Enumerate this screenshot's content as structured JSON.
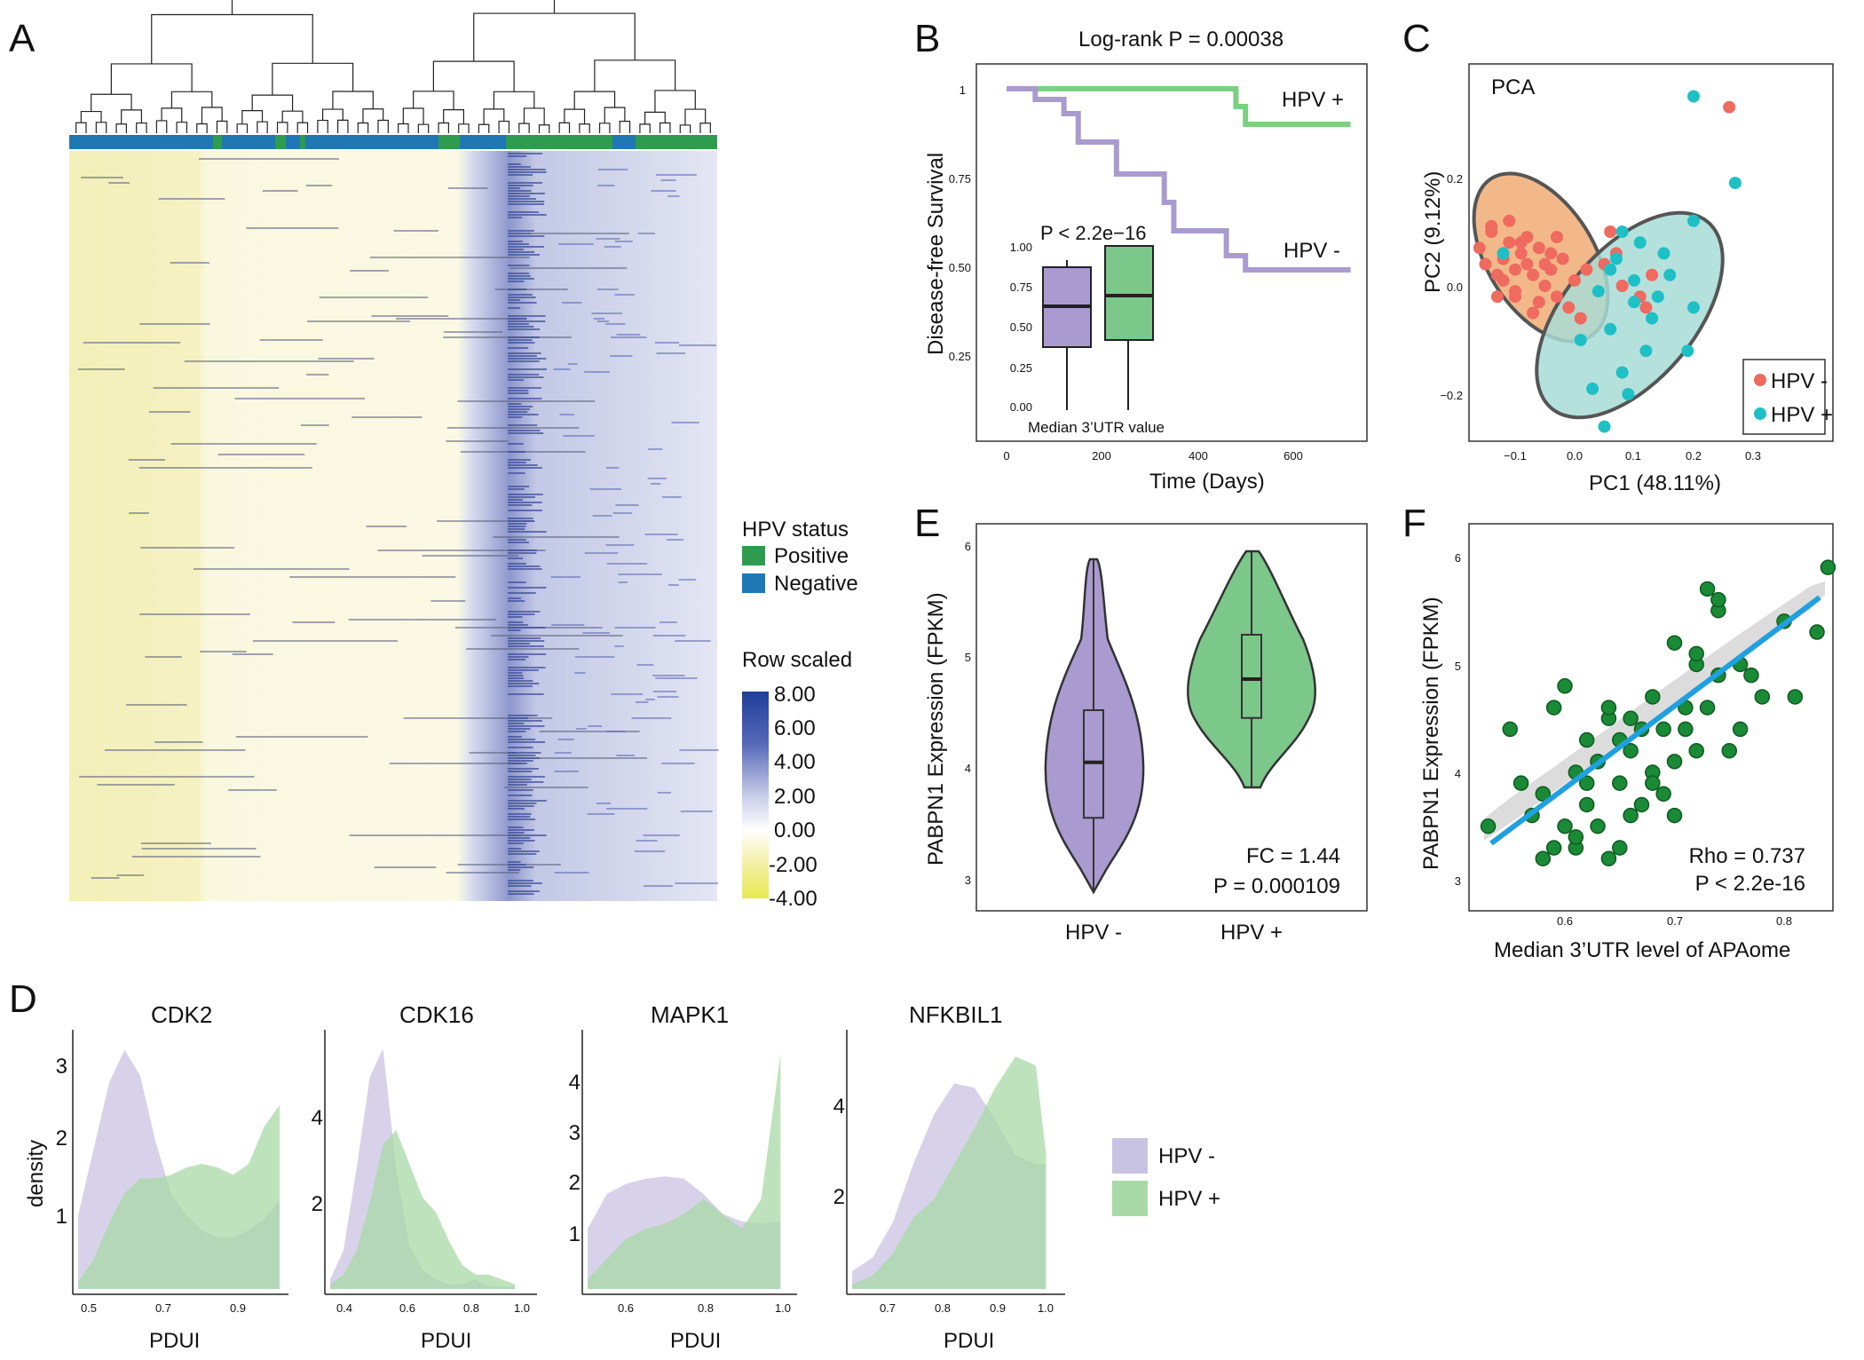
{
  "panel_labels": {
    "A": "A",
    "B": "B",
    "C": "C",
    "D": "D",
    "E": "E",
    "F": "F"
  },
  "colors": {
    "hpv_pos_green": "#2e9c4e",
    "hpv_neg_blue": "#1f77b4",
    "heat_high": "#2b4aa0",
    "heat_mid": "#ffffff",
    "heat_low": "#e8e85a",
    "purple": "#a99bcf",
    "green_fill": "#7cc78a",
    "salmon": "#ef6a5f",
    "teal": "#1ec0c6",
    "dark_green": "#1a8a36",
    "fit_blue": "#1fa0e0"
  },
  "panelA": {
    "legend_title": "HPV status",
    "legend_items": [
      {
        "label": "Positive",
        "color": "#2e9c4e"
      },
      {
        "label": "Negative",
        "color": "#1f77b4"
      }
    ],
    "scale_title": "Row scaled",
    "scale_ticks": [
      "8.00",
      "6.00",
      "4.00",
      "2.00",
      "0.00",
      "-2.00",
      "-4.00"
    ]
  },
  "panelB": {
    "title": "Log-rank P = 0.00038",
    "xlabel": "Time (Days)",
    "ylabel": "Disease-free Survival",
    "x_ticks": [
      "0",
      "200",
      "400",
      "600"
    ],
    "y_ticks": [
      "1",
      "0.75",
      "0.50",
      "0.25"
    ],
    "label_pos": "HPV +",
    "label_neg": "HPV -",
    "inset_p": "P < 2.2e−16",
    "inset_ticks": [
      "1.00",
      "0.75",
      "0.50",
      "0.25",
      "0.00"
    ],
    "inset_xlabel": "Median 3’UTR value"
  },
  "panelC": {
    "title": "PCA",
    "xlabel": "PC1 (48.11%)",
    "ylabel": "PC2 (9.12%)",
    "x_ticks": [
      "−0.1",
      "0.0",
      "0.1",
      "0.2",
      "0.3"
    ],
    "y_ticks": [
      "0.2",
      "0.0",
      "−0.2"
    ],
    "legend": [
      {
        "label": "HPV -",
        "color": "#ef6a5f"
      },
      {
        "label": "HPV +",
        "color": "#1ec0c6"
      }
    ]
  },
  "panelE": {
    "ylabel": "PABPN1 Expression (FPKM)",
    "y_ticks": [
      "6",
      "5",
      "4",
      "3"
    ],
    "categories": [
      "HPV -",
      "HPV +"
    ],
    "fc": "FC = 1.44",
    "p": "P = 0.000109"
  },
  "panelF": {
    "xlabel": "Median 3’UTR level of APAome",
    "ylabel": "PABPN1 Expression (FPKM)",
    "x_ticks": [
      "0.6",
      "0.7",
      "0.8"
    ],
    "y_ticks": [
      "6",
      "5",
      "4",
      "3"
    ],
    "rho": "Rho = 0.737",
    "p": "P < 2.2e-16"
  },
  "panelD": {
    "ylabel": "density",
    "plots": [
      {
        "title": "CDK2",
        "xlabel": "PDUI",
        "x_ticks": [
          "0.5",
          "0.7",
          "0.9"
        ],
        "y_ticks": [
          "3",
          "2",
          "1"
        ]
      },
      {
        "title": "CDK16",
        "xlabel": "PDUI",
        "x_ticks": [
          "0.4",
          "0.6",
          "0.8",
          "1.0"
        ],
        "y_ticks": [
          "4",
          "2"
        ]
      },
      {
        "title": "MAPK1",
        "xlabel": "PDUI",
        "x_ticks": [
          "0.6",
          "0.8",
          "1.0"
        ],
        "y_ticks": [
          "4",
          "3",
          "2",
          "1"
        ]
      },
      {
        "title": "NFKBIL1",
        "xlabel": "PDUI",
        "x_ticks": [
          "0.7",
          "0.8",
          "0.9",
          "1.0"
        ],
        "y_ticks": [
          "4",
          "2"
        ]
      }
    ],
    "legend": [
      {
        "label": "HPV -",
        "color": "#c9c3e3"
      },
      {
        "label": "HPV +",
        "color": "#a8d9a6"
      }
    ]
  },
  "chart_data": [
    {
      "type": "line",
      "panel": "B",
      "title": "Log-rank P = 0.00038",
      "xlabel": "Time (Days)",
      "ylabel": "Disease-free Survival",
      "xlim": [
        0,
        720
      ],
      "ylim": [
        0.2,
        1.0
      ],
      "series": [
        {
          "name": "HPV +",
          "x": [
            0,
            480,
            480,
            500,
            500,
            720
          ],
          "y": [
            1.0,
            1.0,
            0.95,
            0.95,
            0.9,
            0.9
          ]
        },
        {
          "name": "HPV -",
          "x": [
            0,
            60,
            60,
            120,
            120,
            150,
            150,
            230,
            230,
            330,
            330,
            350,
            350,
            460,
            460,
            500,
            500,
            720
          ],
          "y": [
            1.0,
            1.0,
            0.97,
            0.97,
            0.93,
            0.93,
            0.85,
            0.85,
            0.76,
            0.76,
            0.68,
            0.68,
            0.6,
            0.6,
            0.53,
            0.53,
            0.49,
            0.49
          ]
        }
      ]
    },
    {
      "type": "scatter",
      "panel": "C",
      "title": "PCA",
      "xlabel": "PC1 (48.11%)",
      "ylabel": "PC2 (9.12%)",
      "xlim": [
        -0.16,
        0.36
      ],
      "ylim": [
        -0.28,
        0.35
      ],
      "series": [
        {
          "name": "HPV -",
          "x": [
            -0.16,
            -0.15,
            -0.14,
            -0.13,
            -0.12,
            -0.11,
            -0.1,
            -0.1,
            -0.09,
            -0.08,
            -0.07,
            -0.06,
            -0.05,
            -0.04,
            -0.03,
            -0.02,
            -0.01,
            0.0,
            0.01,
            0.02,
            -0.13,
            -0.11,
            -0.08,
            -0.06,
            -0.04,
            -0.12,
            -0.09,
            -0.05,
            -0.07,
            -0.03,
            0.05,
            0.07,
            0.06,
            0.08,
            0.11,
            0.12,
            0.13,
            0.26,
            -0.14,
            -0.1
          ],
          "y": [
            0.07,
            0.04,
            0.1,
            0.02,
            0.05,
            0.08,
            0.03,
            -0.01,
            0.06,
            0.04,
            0.02,
            0.07,
            0.0,
            0.03,
            -0.02,
            0.05,
            -0.04,
            0.01,
            -0.06,
            0.03,
            -0.02,
            0.12,
            0.09,
            -0.03,
            0.06,
            0.01,
            0.08,
            0.04,
            -0.05,
            0.09,
            0.04,
            0.06,
            0.1,
            0.0,
            -0.02,
            -0.04,
            0.02,
            0.33,
            0.11,
            -0.02
          ]
        },
        {
          "name": "HPV +",
          "x": [
            0.2,
            0.27,
            0.2,
            0.08,
            0.07,
            0.11,
            0.15,
            0.2,
            0.04,
            0.06,
            0.1,
            0.12,
            0.16,
            0.08,
            0.13,
            0.03,
            0.01,
            0.1,
            0.05,
            0.19,
            0.09,
            0.14,
            -0.12,
            0.06
          ],
          "y": [
            0.35,
            0.19,
            0.12,
            0.1,
            0.05,
            0.08,
            0.06,
            -0.04,
            -0.01,
            -0.08,
            -0.03,
            -0.12,
            0.02,
            -0.16,
            -0.06,
            -0.19,
            -0.1,
            0.01,
            -0.26,
            -0.12,
            -0.2,
            -0.02,
            0.06,
            0.03
          ]
        }
      ]
    },
    {
      "type": "bar",
      "panel": "E",
      "ylabel": "PABPN1 Expression (FPKM)",
      "categories": [
        "HPV -",
        "HPV +"
      ],
      "ylim": [
        2.8,
        6.1
      ],
      "series": [
        {
          "name": "median",
          "values": [
            4.05,
            4.8
          ]
        },
        {
          "name": "q1",
          "values": [
            3.55,
            4.45
          ]
        },
        {
          "name": "q3",
          "values": [
            4.52,
            5.2
          ]
        },
        {
          "name": "min",
          "values": [
            2.9,
            3.83
          ]
        },
        {
          "name": "max",
          "values": [
            5.87,
            5.95
          ]
        }
      ]
    },
    {
      "type": "scatter",
      "panel": "F",
      "xlabel": "Median 3’UTR level of APAome",
      "ylabel": "PABPN1 Expression (FPKM)",
      "xlim": [
        0.52,
        0.85
      ],
      "ylim": [
        2.8,
        6.1
      ],
      "series": [
        {
          "name": "samples",
          "x": [
            0.53,
            0.55,
            0.57,
            0.58,
            0.59,
            0.6,
            0.61,
            0.61,
            0.62,
            0.62,
            0.63,
            0.63,
            0.64,
            0.64,
            0.65,
            0.65,
            0.66,
            0.66,
            0.67,
            0.67,
            0.68,
            0.68,
            0.69,
            0.69,
            0.7,
            0.7,
            0.71,
            0.71,
            0.72,
            0.72,
            0.73,
            0.73,
            0.74,
            0.74,
            0.75,
            0.76,
            0.77,
            0.78,
            0.8,
            0.81,
            0.83,
            0.84,
            0.56,
            0.59,
            0.63,
            0.66,
            0.7,
            0.74,
            0.6,
            0.62,
            0.58,
            0.64,
            0.68,
            0.72,
            0.76,
            0.61,
            0.65
          ],
          "y": [
            3.5,
            4.4,
            3.6,
            3.8,
            3.3,
            3.5,
            4.0,
            3.3,
            4.3,
            3.7,
            4.1,
            3.5,
            4.5,
            3.2,
            3.9,
            4.3,
            4.2,
            3.6,
            4.4,
            3.7,
            4.7,
            4.0,
            4.4,
            3.8,
            5.2,
            4.1,
            4.6,
            4.4,
            5.0,
            4.2,
            5.7,
            4.6,
            5.5,
            4.9,
            4.2,
            5.0,
            4.9,
            4.7,
            5.4,
            4.7,
            5.3,
            5.9,
            3.9,
            4.6,
            4.1,
            4.5,
            3.6,
            5.6,
            4.8,
            3.9,
            3.2,
            4.6,
            3.9,
            5.1,
            4.4,
            3.4,
            3.3
          ]
        }
      ]
    },
    {
      "type": "area",
      "panel": "D",
      "title": "CDK2",
      "xlabel": "PDUI",
      "ylabel": "density",
      "xlim": [
        0.48,
        1.0
      ],
      "ylim": [
        0,
        3.4
      ],
      "x": [
        0.48,
        0.52,
        0.56,
        0.6,
        0.64,
        0.68,
        0.72,
        0.76,
        0.8,
        0.84,
        0.88,
        0.92,
        0.96,
        1.0
      ],
      "series": [
        {
          "name": "HPV -",
          "values": [
            1.0,
            1.9,
            2.8,
            3.25,
            2.9,
            2.0,
            1.3,
            1.0,
            0.8,
            0.7,
            0.7,
            0.8,
            0.95,
            1.2
          ]
        },
        {
          "name": "HPV +",
          "values": [
            0.1,
            0.4,
            0.9,
            1.3,
            1.5,
            1.5,
            1.55,
            1.65,
            1.7,
            1.65,
            1.55,
            1.7,
            2.2,
            2.5
          ]
        }
      ]
    },
    {
      "type": "area",
      "panel": "D",
      "title": "CDK16",
      "xlabel": "PDUI",
      "ylabel": "density",
      "xlim": [
        0.3,
        1.05
      ],
      "ylim": [
        0,
        5.2
      ],
      "x": [
        0.3,
        0.35,
        0.4,
        0.45,
        0.5,
        0.55,
        0.6,
        0.65,
        0.7,
        0.75,
        0.8,
        0.85,
        0.9,
        0.95,
        1.0
      ],
      "series": [
        {
          "name": "HPV -",
          "values": [
            0.2,
            0.8,
            2.5,
            4.4,
            5.0,
            2.5,
            0.9,
            0.4,
            0.2,
            0.1,
            0.1,
            0.2,
            0.05,
            0.05,
            0.05
          ]
        },
        {
          "name": "HPV +",
          "values": [
            0.1,
            0.3,
            0.8,
            1.8,
            3.0,
            3.3,
            2.6,
            1.9,
            1.6,
            1.0,
            0.5,
            0.3,
            0.3,
            0.2,
            0.1
          ]
        }
      ]
    },
    {
      "type": "area",
      "panel": "D",
      "title": "MAPK1",
      "xlabel": "PDUI",
      "ylabel": "density",
      "xlim": [
        0.5,
        1.02
      ],
      "ylim": [
        0,
        5.0
      ],
      "x": [
        0.5,
        0.55,
        0.6,
        0.65,
        0.7,
        0.75,
        0.8,
        0.85,
        0.9,
        0.95,
        1.0
      ],
      "series": [
        {
          "name": "HPV -",
          "values": [
            1.2,
            1.9,
            2.1,
            2.2,
            2.25,
            2.2,
            1.9,
            1.5,
            1.35,
            1.3,
            1.35
          ]
        },
        {
          "name": "HPV +",
          "values": [
            0.2,
            0.6,
            1.0,
            1.2,
            1.3,
            1.5,
            1.8,
            1.5,
            1.2,
            1.8,
            4.7
          ]
        }
      ]
    },
    {
      "type": "area",
      "panel": "D",
      "title": "NFKBIL1",
      "xlabel": "PDUI",
      "ylabel": "density",
      "xlim": [
        0.62,
        1.02
      ],
      "ylim": [
        0,
        5.6
      ],
      "x": [
        0.62,
        0.66,
        0.7,
        0.74,
        0.78,
        0.82,
        0.86,
        0.9,
        0.94,
        0.98,
        1.0
      ],
      "series": [
        {
          "name": "HPV -",
          "values": [
            0.4,
            0.7,
            1.5,
            2.8,
            3.9,
            4.6,
            4.5,
            3.8,
            3.0,
            2.8,
            2.8
          ]
        },
        {
          "name": "HPV +",
          "values": [
            0.1,
            0.3,
            0.8,
            1.6,
            2.0,
            2.8,
            3.6,
            4.5,
            5.2,
            5.0,
            3.0
          ]
        }
      ]
    }
  ]
}
